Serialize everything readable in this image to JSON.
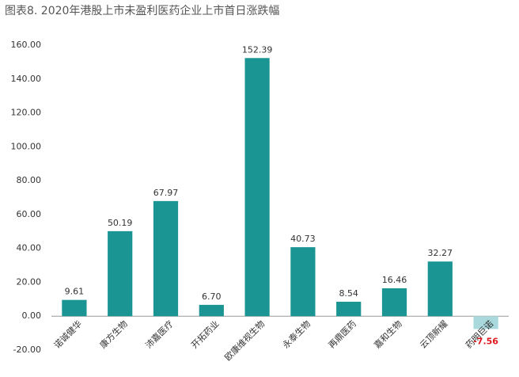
{
  "chart_data": {
    "type": "bar",
    "title": "图表8. 2020年港股上市未盈利医药企业上市首日涨跌幅",
    "categories": [
      "诺诚健华",
      "康方生物",
      "沛嘉医疗",
      "开拓药业",
      "欧康维视生物",
      "永泰生物",
      "再鼎医药",
      "嘉和生物",
      "云顶新耀",
      "药明巨诺"
    ],
    "values": [
      9.61,
      50.19,
      67.97,
      6.7,
      152.39,
      40.73,
      8.54,
      16.46,
      32.27,
      -7.56
    ],
    "value_labels": [
      "9.61",
      "50.19",
      "67.97",
      "6.70",
      "152.39",
      "40.73",
      "8.54",
      "16.46",
      "32.27",
      "-7.56"
    ],
    "color": "#1a9593",
    "negative_color": "#a9d9dd",
    "negative_label_color": "#e0161d",
    "ylim": [
      -20,
      160
    ],
    "yticks": [
      {
        "value": -20,
        "label": "-20.00"
      },
      {
        "value": 0,
        "label": "0.00"
      },
      {
        "value": 20,
        "label": "20.00"
      },
      {
        "value": 40,
        "label": "40.00"
      },
      {
        "value": 60,
        "label": "60.00"
      },
      {
        "value": 80,
        "label": "80.00"
      },
      {
        "value": 100,
        "label": "100.00"
      },
      {
        "value": 120,
        "label": "120.00"
      },
      {
        "value": 140,
        "label": "140.00"
      },
      {
        "value": 160,
        "label": "160.00"
      }
    ],
    "grid": false
  }
}
